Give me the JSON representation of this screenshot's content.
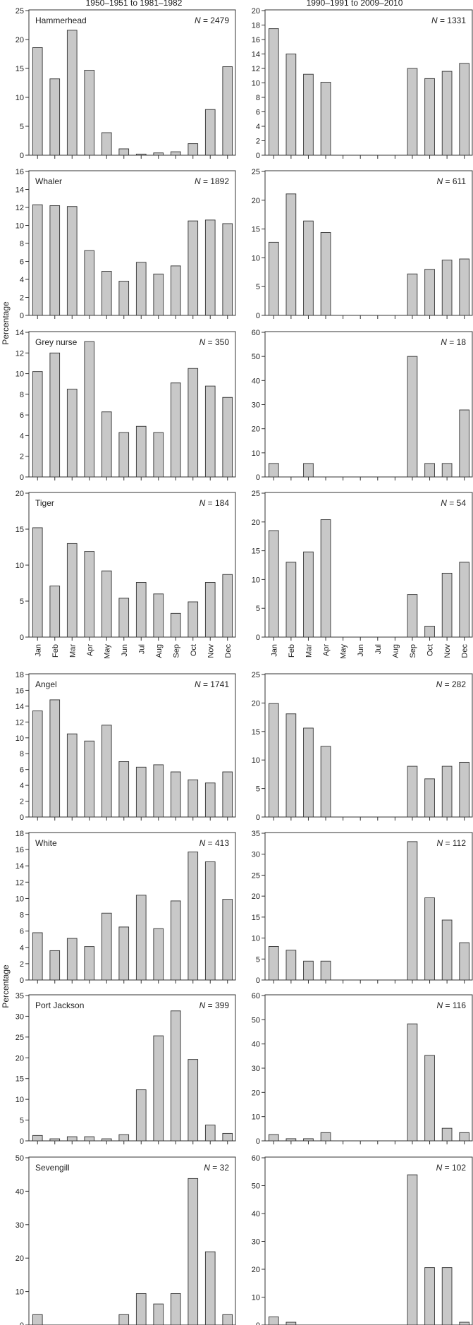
{
  "column_titles": [
    "1950–1951 to 1981–1982",
    "1990–1991 to 2009–2010"
  ],
  "ylabel": "Percentage",
  "months": [
    "Jan",
    "Feb",
    "Mar",
    "Apr",
    "May",
    "Jun",
    "Jul",
    "Aug",
    "Sep",
    "Oct",
    "Nov",
    "Dec"
  ],
  "chart_data": [
    {
      "type": "bar",
      "species": "Hammerhead",
      "period": "1950–1951 to 1981–1982",
      "n_label": "= 2479",
      "ylim": [
        0,
        25
      ],
      "yticks": [
        0,
        5,
        10,
        15,
        20,
        25
      ],
      "values": [
        18.6,
        13.2,
        21.6,
        14.7,
        3.9,
        1.1,
        0.2,
        0.4,
        0.6,
        2.0,
        7.9,
        15.3
      ]
    },
    {
      "type": "bar",
      "species": "",
      "period": "1990–1991 to 2009–2010",
      "n_label": "= 1331",
      "ylim": [
        0,
        20
      ],
      "yticks": [
        0,
        2,
        4,
        6,
        8,
        10,
        12,
        14,
        16,
        18,
        20
      ],
      "values": [
        17.5,
        14.0,
        11.2,
        10.1,
        0,
        0,
        0,
        0,
        12.0,
        10.6,
        11.6,
        12.7
      ]
    },
    {
      "type": "bar",
      "species": "Whaler",
      "period": "1950–1951 to 1981–1982",
      "n_label": "= 1892",
      "ylim": [
        0,
        16
      ],
      "yticks": [
        0,
        2,
        4,
        6,
        8,
        10,
        12,
        14,
        16
      ],
      "values": [
        12.3,
        12.2,
        12.1,
        7.2,
        4.9,
        3.8,
        5.9,
        4.6,
        5.5,
        10.5,
        10.6,
        10.2
      ]
    },
    {
      "type": "bar",
      "species": "",
      "period": "1990–1991 to 2009–2010",
      "n_label": "= 611",
      "ylim": [
        0,
        25
      ],
      "yticks": [
        0,
        5,
        10,
        15,
        20,
        25
      ],
      "values": [
        12.7,
        21.1,
        16.4,
        14.4,
        0,
        0,
        0,
        0,
        7.2,
        8.0,
        9.6,
        9.8
      ]
    },
    {
      "type": "bar",
      "species": "Grey nurse",
      "period": "1950–1951 to 1981–1982",
      "n_label": "= 350",
      "ylim": [
        0,
        14
      ],
      "yticks": [
        0,
        2,
        4,
        6,
        8,
        10,
        12,
        14
      ],
      "values": [
        10.2,
        12.0,
        8.5,
        13.1,
        6.3,
        4.3,
        4.9,
        4.3,
        9.1,
        10.5,
        8.8,
        7.7
      ]
    },
    {
      "type": "bar",
      "species": "",
      "period": "1990–1991 to 2009–2010",
      "n_label": "= 18",
      "ylim": [
        0,
        60
      ],
      "yticks": [
        0,
        10,
        20,
        30,
        40,
        50,
        60
      ],
      "values": [
        5.6,
        0,
        5.6,
        0,
        0,
        0,
        0,
        0,
        50.0,
        5.6,
        5.6,
        27.8
      ]
    },
    {
      "type": "bar",
      "species": "Tiger",
      "period": "1950–1951 to 1981–1982",
      "n_label": "= 184",
      "ylim": [
        0,
        20
      ],
      "yticks": [
        0,
        5,
        10,
        15,
        20
      ],
      "values": [
        15.2,
        7.1,
        13.0,
        11.9,
        9.2,
        5.4,
        7.6,
        6.0,
        3.3,
        4.9,
        7.6,
        8.7
      ]
    },
    {
      "type": "bar",
      "species": "",
      "period": "1990–1991 to 2009–2010",
      "n_label": "= 54",
      "ylim": [
        0,
        25
      ],
      "yticks": [
        0,
        5,
        10,
        15,
        20,
        25
      ],
      "values": [
        18.5,
        13.0,
        14.8,
        20.4,
        0,
        0,
        0,
        0,
        7.4,
        1.9,
        11.1,
        13.0
      ]
    },
    {
      "type": "bar",
      "species": "Angel",
      "period": "1950–1951 to 1981–1982",
      "n_label": "= 1741",
      "ylim": [
        0,
        18
      ],
      "yticks": [
        0,
        2,
        4,
        6,
        8,
        10,
        12,
        14,
        16,
        18
      ],
      "values": [
        13.4,
        14.8,
        10.5,
        9.6,
        11.6,
        7.0,
        6.3,
        6.6,
        5.7,
        4.7,
        4.3,
        5.7
      ]
    },
    {
      "type": "bar",
      "species": "",
      "period": "1990–1991 to 2009–2010",
      "n_label": "= 282",
      "ylim": [
        0,
        25
      ],
      "yticks": [
        0,
        5,
        10,
        15,
        20,
        25
      ],
      "values": [
        19.9,
        18.1,
        15.6,
        12.4,
        0,
        0,
        0,
        0,
        8.9,
        6.7,
        8.9,
        9.6
      ]
    },
    {
      "type": "bar",
      "species": "White",
      "period": "1950–1951 to 1981–1982",
      "n_label": "= 413",
      "ylim": [
        0,
        18
      ],
      "yticks": [
        0,
        2,
        4,
        6,
        8,
        10,
        12,
        14,
        16,
        18
      ],
      "values": [
        5.8,
        3.6,
        5.1,
        4.1,
        8.2,
        6.5,
        10.4,
        6.3,
        9.7,
        15.7,
        14.5,
        9.9
      ]
    },
    {
      "type": "bar",
      "species": "",
      "period": "1990–1991 to 2009–2010",
      "n_label": "= 112",
      "ylim": [
        0,
        35
      ],
      "yticks": [
        0,
        5,
        10,
        15,
        20,
        25,
        30,
        35
      ],
      "values": [
        8.0,
        7.1,
        4.5,
        4.5,
        0,
        0,
        0,
        0,
        33.0,
        19.6,
        14.3,
        8.9
      ]
    },
    {
      "type": "bar",
      "species": "Port Jackson",
      "period": "1950–1951 to 1981–1982",
      "n_label": "= 399",
      "ylim": [
        0,
        35
      ],
      "yticks": [
        0,
        5,
        10,
        15,
        20,
        25,
        30,
        35
      ],
      "values": [
        1.3,
        0.5,
        1.0,
        1.0,
        0.5,
        1.5,
        12.3,
        25.3,
        31.3,
        19.6,
        3.8,
        1.8
      ]
    },
    {
      "type": "bar",
      "species": "",
      "period": "1990–1991 to 2009–2010",
      "n_label": "= 116",
      "ylim": [
        0,
        60
      ],
      "yticks": [
        0,
        10,
        20,
        30,
        40,
        50,
        60
      ],
      "values": [
        2.6,
        0.9,
        0.9,
        3.4,
        0,
        0,
        0,
        0,
        48.3,
        35.3,
        5.2,
        3.4
      ]
    },
    {
      "type": "bar",
      "species": "Sevengill",
      "period": "1950–1951 to 1981–1982",
      "n_label": "= 32",
      "ylim": [
        0,
        50
      ],
      "yticks": [
        0,
        10,
        20,
        30,
        40,
        50
      ],
      "values": [
        3.1,
        0,
        0,
        0,
        0,
        3.1,
        9.4,
        6.3,
        9.4,
        43.8,
        21.9,
        3.1
      ]
    },
    {
      "type": "bar",
      "species": "",
      "period": "1990–1991 to 2009–2010",
      "n_label": "= 102",
      "ylim": [
        0,
        60
      ],
      "yticks": [
        0,
        10,
        20,
        30,
        40,
        50,
        60
      ],
      "values": [
        2.9,
        1.0,
        0,
        0,
        0,
        0,
        0,
        0,
        53.9,
        20.6,
        20.6,
        1.0
      ]
    }
  ]
}
